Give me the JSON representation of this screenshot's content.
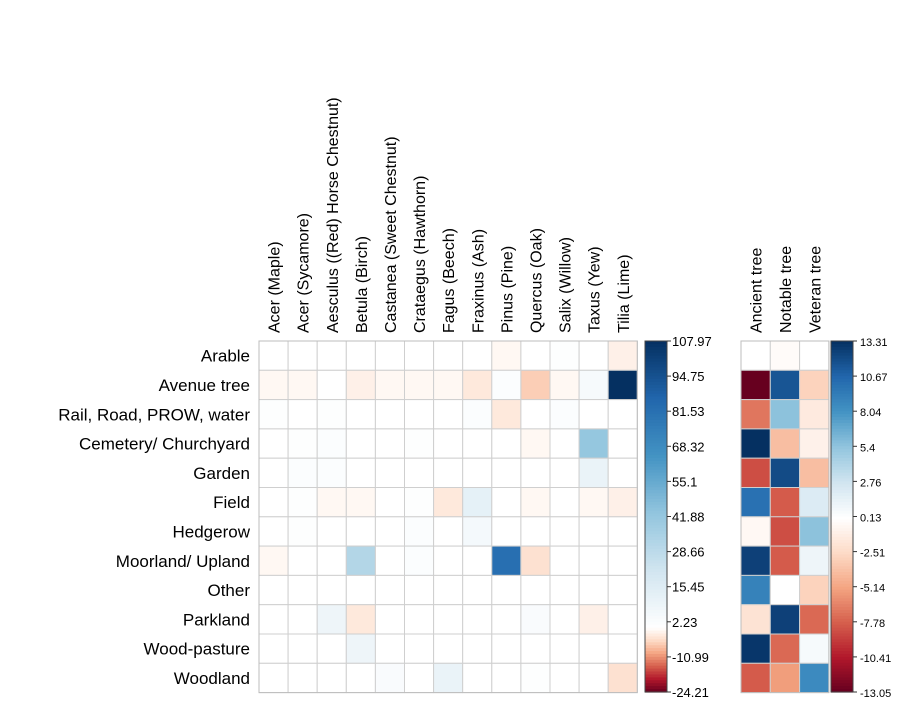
{
  "chart_data": [
    {
      "type": "heatmap",
      "rows": [
        "Arable",
        "Avenue tree",
        "Rail, Road, PROW, water",
        "Cemetery/ Churchyard",
        "Garden",
        "Field",
        "Hedgerow",
        "Moorland/ Upland",
        "Other",
        "Parkland",
        "Wood-pasture",
        "Woodland"
      ],
      "columns": [
        "Acer (Maple)",
        "Acer (Sycamore)",
        "Aesculus ((Red) Horse Chestnut)",
        "Betula (Birch)",
        "Castanea (Sweet Chestnut)",
        "Crataegus (Hawthorn)",
        "Fagus (Beech)",
        "Fraxinus (Ash)",
        "Pinus (Pine)",
        "Quercus (Oak)",
        "Salix (Willow)",
        "Taxus (Yew)",
        "Tilia (Lime)"
      ],
      "values": [
        [
          0,
          0,
          0,
          0,
          0,
          0,
          0,
          0,
          -1,
          0,
          1,
          0,
          -2
        ],
        [
          -1,
          -1,
          0,
          -2,
          -1,
          -1,
          -1,
          -3,
          2,
          -6,
          -1,
          4,
          107.97
        ],
        [
          1,
          0,
          1,
          0,
          0,
          0,
          0,
          2,
          -3,
          0,
          2,
          0,
          0
        ],
        [
          0,
          1,
          2,
          0,
          0,
          1,
          0,
          0,
          0,
          -1,
          0,
          42,
          0
        ],
        [
          0,
          2,
          2,
          0,
          0,
          0,
          0,
          0,
          0,
          0,
          0,
          10,
          0
        ],
        [
          0,
          1,
          -1,
          -1,
          0,
          1,
          -3,
          12,
          0,
          -1,
          0,
          -1,
          -2
        ],
        [
          0,
          1,
          0,
          0,
          0,
          2,
          0,
          5,
          0,
          0,
          0,
          0,
          0
        ],
        [
          -1,
          0,
          0,
          32,
          0,
          2,
          0,
          0,
          82,
          -4,
          0,
          0,
          0
        ],
        [
          0,
          0,
          0,
          0,
          0,
          0,
          0,
          0,
          0,
          0,
          0,
          0,
          0
        ],
        [
          0,
          0,
          8,
          -3,
          0,
          0,
          0,
          0,
          0,
          3,
          0,
          -2,
          0
        ],
        [
          0,
          0,
          0,
          8,
          0,
          0,
          0,
          0,
          0,
          0,
          0,
          0,
          0
        ],
        [
          0,
          0,
          0,
          0,
          3,
          0,
          10,
          0,
          0,
          1,
          0,
          0,
          -4
        ]
      ],
      "scale": {
        "min": -24.21,
        "max": 107.97,
        "ticks": [
          "107.97",
          "94.75",
          "81.53",
          "68.32",
          "55.1",
          "41.88",
          "28.66",
          "15.45",
          "2.23",
          "-10.99",
          "-24.21"
        ]
      },
      "colors": {
        "negative": "#67001f",
        "neutral": "#ffffff",
        "positive": "#053061"
      },
      "grid": true,
      "legend": "right"
    },
    {
      "type": "heatmap",
      "rows": [
        "Arable",
        "Avenue tree",
        "Rail, Road, PROW, water",
        "Cemetery/ Churchyard",
        "Garden",
        "Field",
        "Hedgerow",
        "Moorland/ Upland",
        "Other",
        "Parkland",
        "Wood-pasture",
        "Woodland"
      ],
      "columns": [
        "Ancient tree",
        "Notable tree",
        "Veteran tree"
      ],
      "values": [
        [
          0,
          -0.3,
          0
        ],
        [
          -13.05,
          11.5,
          -3
        ],
        [
          -7,
          5.5,
          -1.5
        ],
        [
          13.31,
          -4,
          -1
        ],
        [
          -8.5,
          12,
          -4
        ],
        [
          10,
          -8,
          2
        ],
        [
          -0.5,
          -8.5,
          5.5
        ],
        [
          12.5,
          -8,
          1
        ],
        [
          9,
          0,
          -3
        ],
        [
          -2,
          12.5,
          -7.5
        ],
        [
          13,
          -7.5,
          0.5
        ],
        [
          -8,
          -5.5,
          8.5
        ]
      ],
      "scale": {
        "min": -13.05,
        "max": 13.31,
        "ticks": [
          "13.31",
          "10.67",
          "8.04",
          "5.4",
          "2.76",
          "0.13",
          "-2.51",
          "-5.14",
          "-7.78",
          "-10.41",
          "-13.05"
        ]
      },
      "colors": {
        "negative": "#67001f",
        "neutral": "#ffffff",
        "positive": "#053061"
      },
      "grid": true,
      "legend": "right"
    }
  ]
}
